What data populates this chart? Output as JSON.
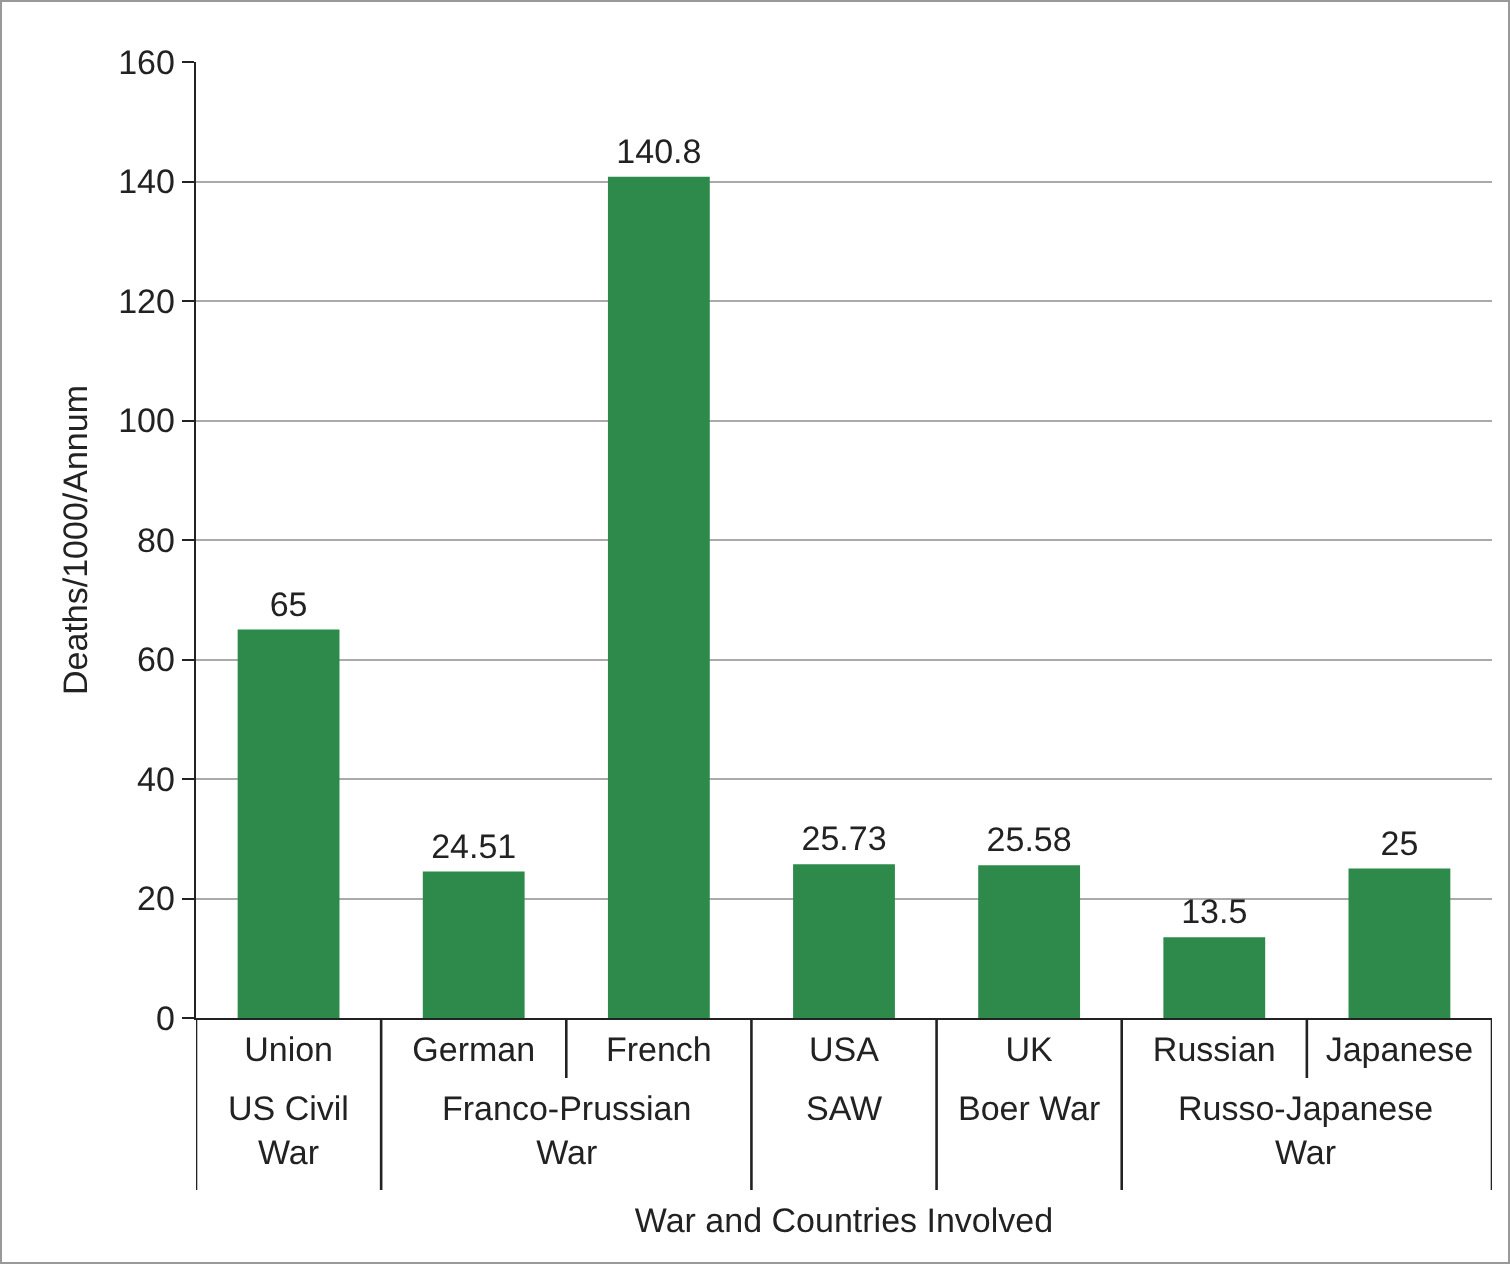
{
  "chart_data": {
    "type": "bar",
    "xlabel": "War and Countries Involved",
    "ylabel": "Deaths/1000/Annum",
    "categories": [
      "Union",
      "German",
      "French",
      "USA",
      "UK",
      "Russian",
      "Japanese"
    ],
    "values": [
      65,
      24.51,
      140.8,
      25.73,
      25.58,
      13.5,
      25
    ],
    "color": "#2d8a4b",
    "ylim": [
      0,
      160
    ],
    "yticks": [
      0,
      20,
      40,
      60,
      80,
      100,
      120,
      140,
      160
    ],
    "grid": "y",
    "data_labels": true,
    "annotations": [
      "US Civil War",
      "Franco-Prussian War",
      "SAW",
      "Boer War",
      "Russo-Japanese War"
    ]
  }
}
